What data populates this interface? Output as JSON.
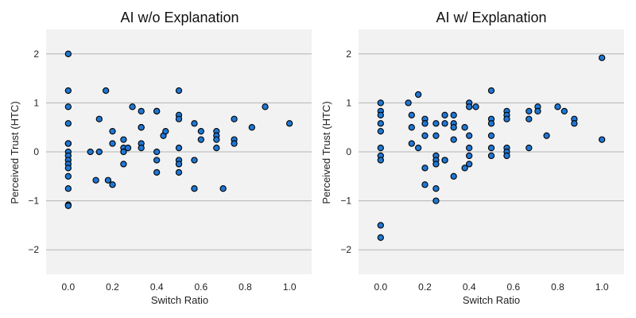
{
  "chart_data": [
    {
      "type": "scatter",
      "title": "AI w/o Explanation",
      "xlabel": "Switch Ratio",
      "ylabel": "Perceived Trust (HTC)",
      "xlim": [
        -0.1,
        1.1
      ],
      "ylim": [
        -2.5,
        2.5
      ],
      "xticks": [
        "0.0",
        "0.2",
        "0.4",
        "0.6",
        "0.8",
        "1.0"
      ],
      "yticks": [
        "−2",
        "−1",
        "0",
        "1",
        "2"
      ],
      "grid": "horizontal",
      "marker_color": "#1f77d4",
      "marker_edge": "#000000",
      "background": "#f2f2f2",
      "points": [
        [
          0,
          2.0
        ],
        [
          0,
          1.25
        ],
        [
          0,
          0.92
        ],
        [
          0,
          0.58
        ],
        [
          0,
          0.17
        ],
        [
          0,
          0.17
        ],
        [
          0,
          0.0
        ],
        [
          0,
          -0.08
        ],
        [
          0,
          -0.17
        ],
        [
          0,
          -0.25
        ],
        [
          0,
          -0.33
        ],
        [
          0,
          -0.5
        ],
        [
          0,
          -0.75
        ],
        [
          0,
          -1.08
        ],
        [
          0,
          -1.1
        ],
        [
          0.1,
          0.0
        ],
        [
          0.125,
          -0.58
        ],
        [
          0.14,
          0.67
        ],
        [
          0.14,
          0.0
        ],
        [
          0.17,
          1.25
        ],
        [
          0.18,
          -0.58
        ],
        [
          0.2,
          -0.67
        ],
        [
          0.2,
          0.42
        ],
        [
          0.2,
          0.17
        ],
        [
          0.25,
          0.25
        ],
        [
          0.25,
          0.08
        ],
        [
          0.25,
          0.0
        ],
        [
          0.25,
          -0.25
        ],
        [
          0.27,
          0.08
        ],
        [
          0.29,
          0.92
        ],
        [
          0.33,
          0.83
        ],
        [
          0.33,
          0.5
        ],
        [
          0.33,
          0.5
        ],
        [
          0.33,
          0.17
        ],
        [
          0.33,
          0.08
        ],
        [
          0.4,
          0.83
        ],
        [
          0.4,
          0.83
        ],
        [
          0.4,
          0.0
        ],
        [
          0.4,
          -0.17
        ],
        [
          0.4,
          -0.42
        ],
        [
          0.43,
          0.33
        ],
        [
          0.44,
          0.42
        ],
        [
          0.5,
          1.25
        ],
        [
          0.5,
          0.75
        ],
        [
          0.5,
          0.67
        ],
        [
          0.5,
          0.08
        ],
        [
          0.5,
          -0.17
        ],
        [
          0.5,
          -0.25
        ],
        [
          0.5,
          -0.42
        ],
        [
          0.57,
          0.58
        ],
        [
          0.57,
          -0.17
        ],
        [
          0.57,
          -0.75
        ],
        [
          0.6,
          0.42
        ],
        [
          0.6,
          0.25
        ],
        [
          0.67,
          0.42
        ],
        [
          0.67,
          0.33
        ],
        [
          0.67,
          0.25
        ],
        [
          0.67,
          0.08
        ],
        [
          0.7,
          -0.75
        ],
        [
          0.75,
          0.67
        ],
        [
          0.75,
          0.25
        ],
        [
          0.75,
          0.17
        ],
        [
          0.83,
          0.5
        ],
        [
          0.89,
          0.92
        ],
        [
          1.0,
          0.58
        ]
      ]
    },
    {
      "type": "scatter",
      "title": "AI w/ Explanation",
      "xlabel": "Switch Ratio",
      "ylabel": "Perceived Trust (HTC)",
      "xlim": [
        -0.1,
        1.1
      ],
      "ylim": [
        -2.5,
        2.5
      ],
      "xticks": [
        "0.0",
        "0.2",
        "0.4",
        "0.6",
        "0.8",
        "1.0"
      ],
      "yticks": [
        "−2",
        "−1",
        "0",
        "1",
        "2"
      ],
      "grid": "horizontal",
      "marker_color": "#1f77d4",
      "marker_edge": "#000000",
      "background": "#f2f2f2",
      "points": [
        [
          0,
          1.0
        ],
        [
          0,
          0.83
        ],
        [
          0,
          0.75
        ],
        [
          0,
          0.58
        ],
        [
          0,
          0.42
        ],
        [
          0,
          0.08
        ],
        [
          0,
          -0.08
        ],
        [
          0,
          -0.17
        ],
        [
          0,
          -1.5
        ],
        [
          0,
          -1.75
        ],
        [
          0.125,
          1.0
        ],
        [
          0.14,
          0.75
        ],
        [
          0.14,
          0.5
        ],
        [
          0.14,
          0.17
        ],
        [
          0.17,
          1.17
        ],
        [
          0.17,
          0.08
        ],
        [
          0.2,
          0.67
        ],
        [
          0.2,
          0.58
        ],
        [
          0.2,
          0.33
        ],
        [
          0.2,
          -0.33
        ],
        [
          0.2,
          -0.67
        ],
        [
          0.25,
          0.58
        ],
        [
          0.25,
          0.33
        ],
        [
          0.25,
          -0.08
        ],
        [
          0.25,
          -0.17
        ],
        [
          0.25,
          -0.25
        ],
        [
          0.25,
          -0.75
        ],
        [
          0.25,
          -1.0
        ],
        [
          0.29,
          0.75
        ],
        [
          0.29,
          0.58
        ],
        [
          0.29,
          -0.17
        ],
        [
          0.29,
          -0.17
        ],
        [
          0.33,
          0.75
        ],
        [
          0.33,
          0.58
        ],
        [
          0.33,
          0.5
        ],
        [
          0.33,
          0.25
        ],
        [
          0.33,
          -0.5
        ],
        [
          0.38,
          0.5
        ],
        [
          0.38,
          -0.33
        ],
        [
          0.4,
          1.0
        ],
        [
          0.4,
          0.92
        ],
        [
          0.4,
          0.33
        ],
        [
          0.4,
          0.08
        ],
        [
          0.4,
          -0.08
        ],
        [
          0.4,
          -0.25
        ],
        [
          0.43,
          0.92
        ],
        [
          0.5,
          1.25
        ],
        [
          0.5,
          0.67
        ],
        [
          0.5,
          0.58
        ],
        [
          0.5,
          0.33
        ],
        [
          0.5,
          0.08
        ],
        [
          0.5,
          -0.08
        ],
        [
          0.57,
          0.83
        ],
        [
          0.57,
          0.75
        ],
        [
          0.57,
          0.67
        ],
        [
          0.57,
          0.08
        ],
        [
          0.57,
          0.0
        ],
        [
          0.57,
          -0.08
        ],
        [
          0.67,
          0.83
        ],
        [
          0.67,
          0.67
        ],
        [
          0.67,
          0.08
        ],
        [
          0.71,
          0.92
        ],
        [
          0.71,
          0.83
        ],
        [
          0.75,
          0.33
        ],
        [
          0.8,
          0.92
        ],
        [
          0.83,
          0.83
        ],
        [
          0.875,
          0.67
        ],
        [
          0.875,
          0.58
        ],
        [
          1.0,
          1.92
        ],
        [
          1.0,
          0.25
        ]
      ]
    }
  ]
}
